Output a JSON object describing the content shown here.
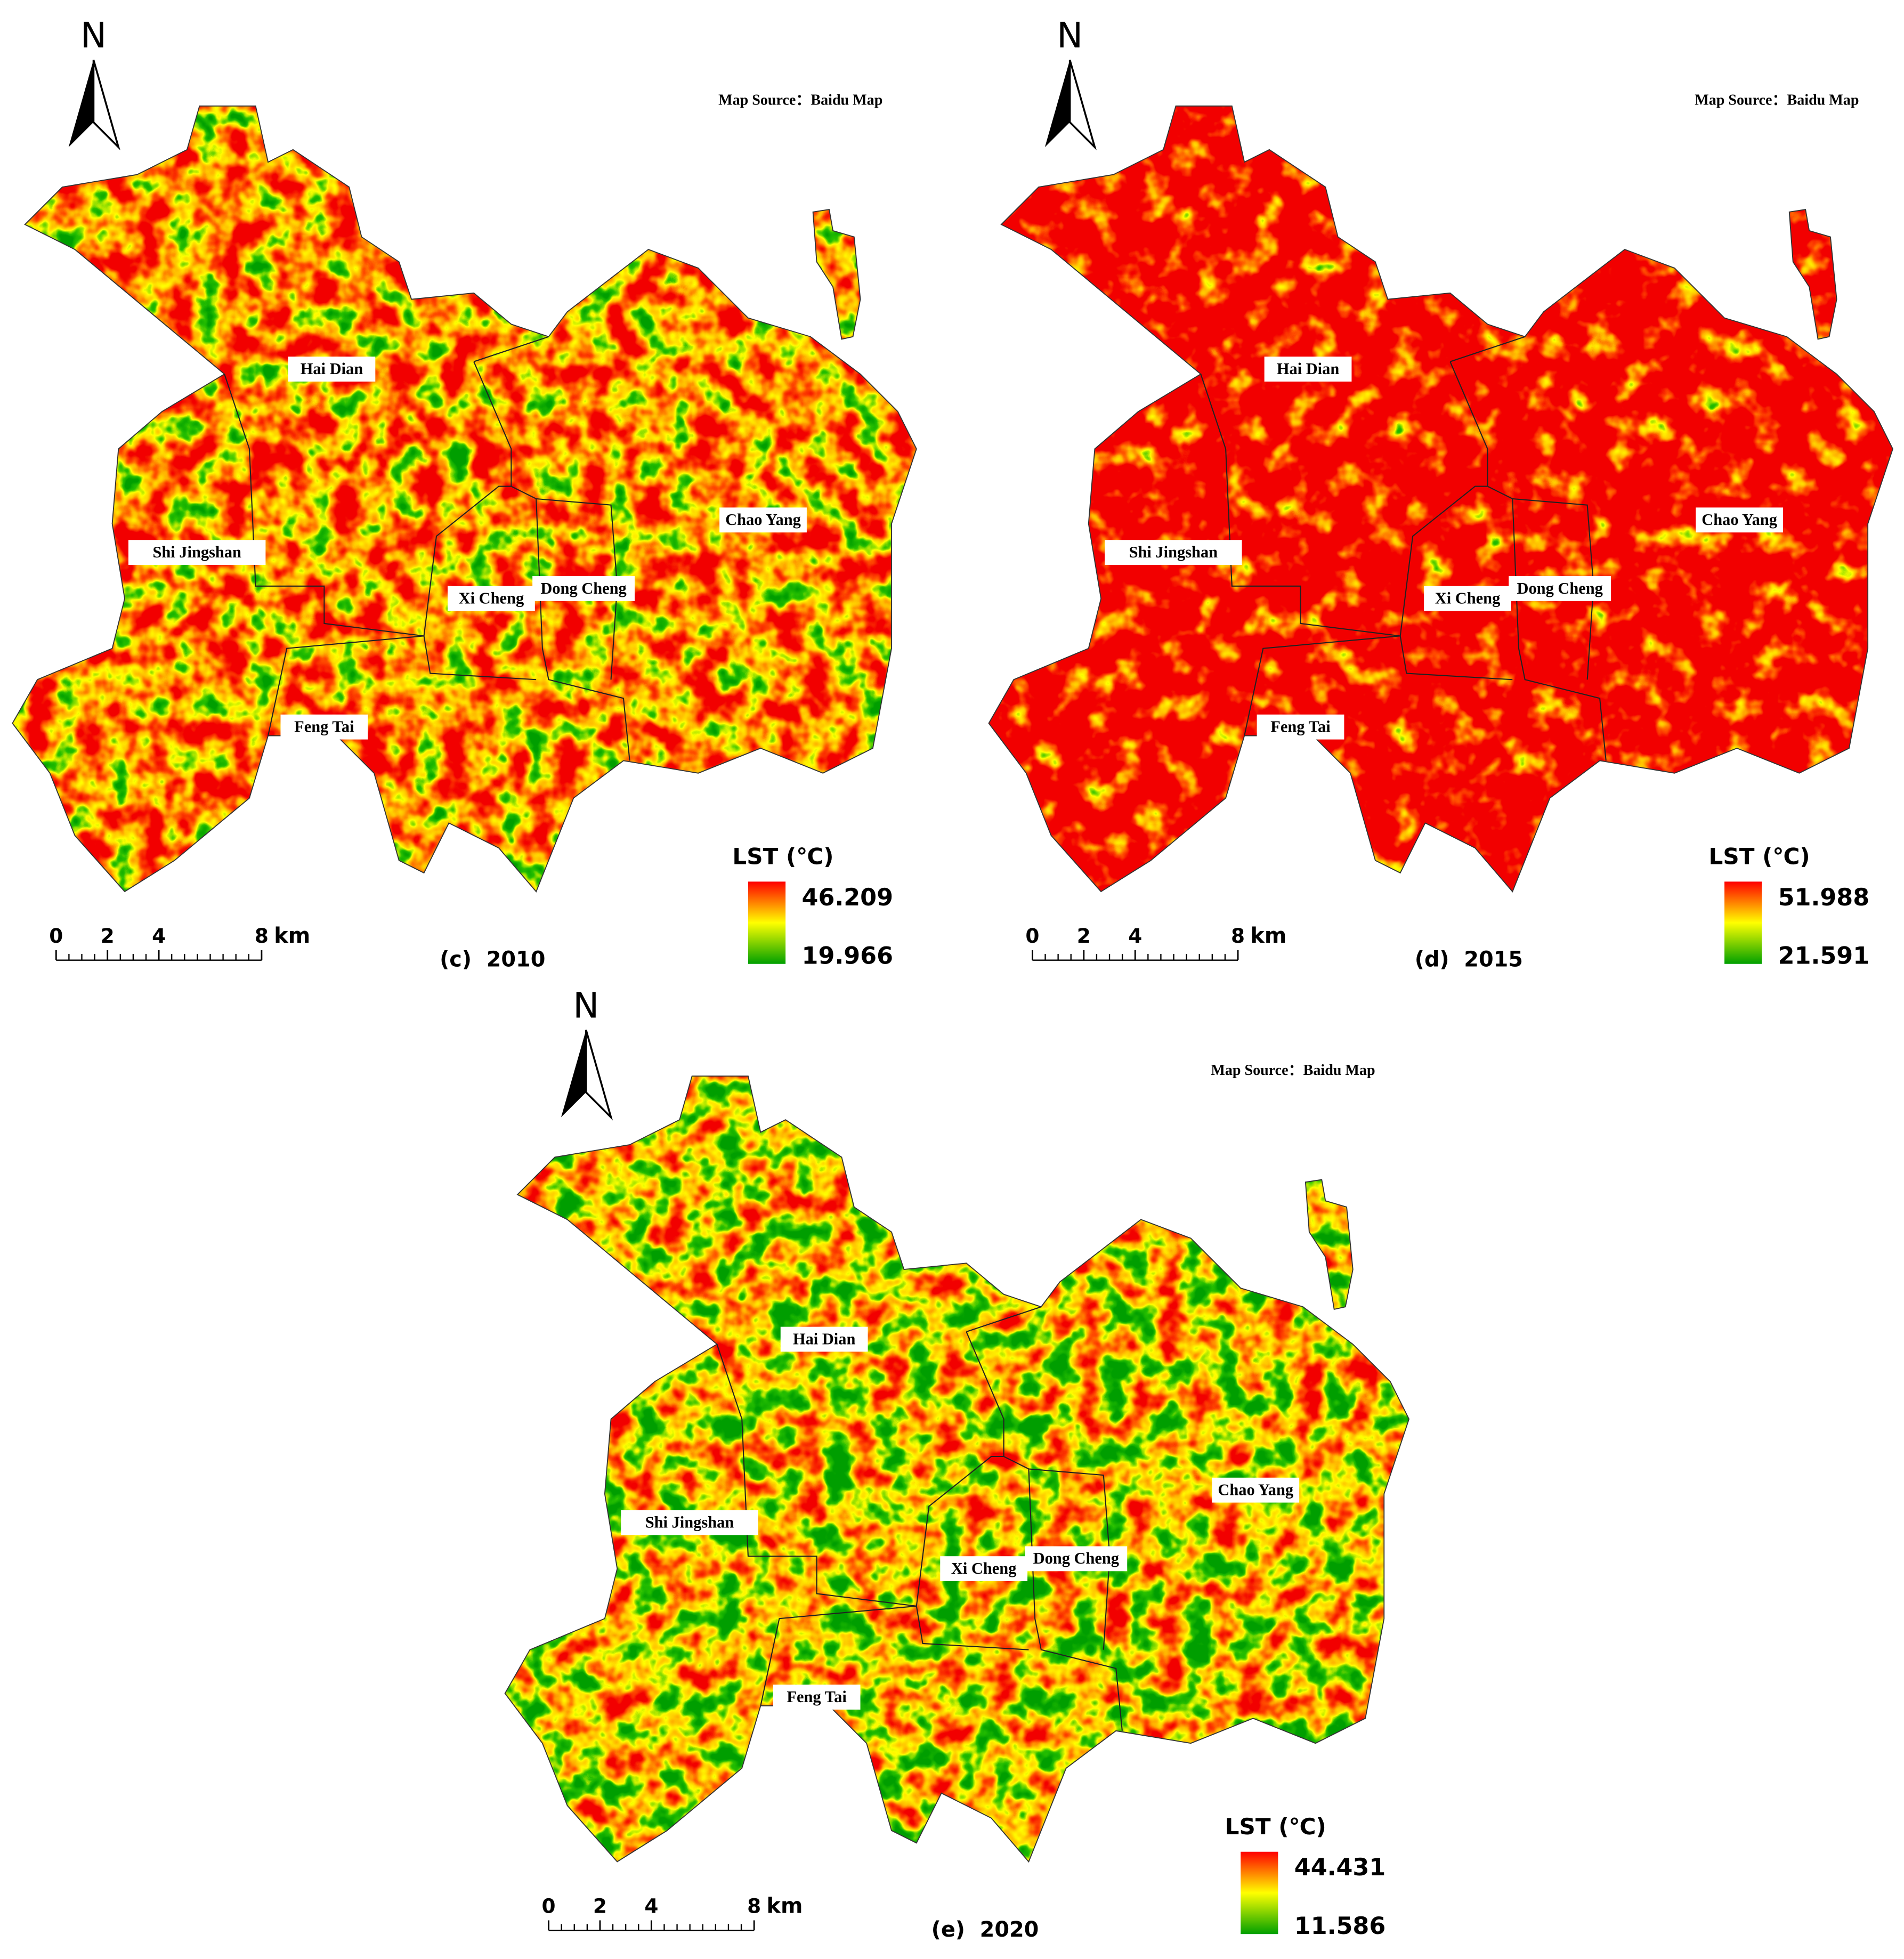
{
  "panels": [
    {
      "north": "N",
      "source": "Map Source：Baidu Map",
      "districts": [
        "Hai Dian",
        "Shi Jingshan",
        "Xi Cheng",
        "Dong Cheng",
        "Chao Yang",
        "Feng Tai"
      ],
      "legend": {
        "title": "LST (℃)",
        "max": 46.209,
        "min": 19.966
      },
      "scale": {
        "ticks": [
          0,
          2,
          4,
          8
        ],
        "unit": "km"
      },
      "caption": "(c)  2010"
    },
    {
      "north": "N",
      "source": "Map Source：Baidu Map",
      "districts": [
        "Hai Dian",
        "Shi Jingshan",
        "Xi Cheng",
        "Dong Cheng",
        "Chao Yang",
        "Feng Tai"
      ],
      "legend": {
        "title": "LST (℃)",
        "max": 51.988,
        "min": 21.591
      },
      "scale": {
        "ticks": [
          0,
          2,
          4,
          8
        ],
        "unit": "km"
      },
      "caption": "(d)  2015"
    },
    {
      "north": "N",
      "source": "Map Source：Baidu Map",
      "districts": [
        "Hai Dian",
        "Shi Jingshan",
        "Xi Cheng",
        "Dong Cheng",
        "Chao Yang",
        "Feng Tai"
      ],
      "legend": {
        "title": "LST (℃)",
        "max": 44.431,
        "min": 11.586
      },
      "scale": {
        "ticks": [
          0,
          2,
          4,
          8
        ],
        "unit": "km"
      },
      "caption": "(e)  2020"
    }
  ]
}
